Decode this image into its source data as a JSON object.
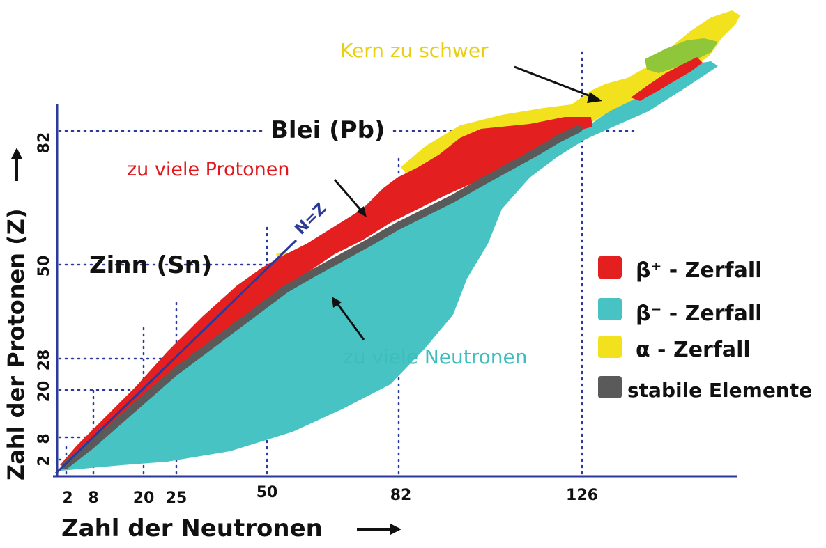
{
  "colors": {
    "beta_plus": "#e41f1f",
    "beta_minus": "#47c3c3",
    "alpha": "#f2e21e",
    "alpha_green": "#8fc63a",
    "stable": "#5a5a5a",
    "axis": "#2b3a9a",
    "nz_line": "#2b3a9a",
    "label_red": "#e0181e",
    "label_yellow": "#e8cf14",
    "label_cyan": "#3dbdbd",
    "dotted": "#2b3a9a"
  },
  "axes": {
    "x_label": "Zahl der Neutronen",
    "y_label": "Zahl der Protonen (Z)",
    "x_ticks": [
      "2",
      "8",
      "20",
      "25",
      "50",
      "82",
      "126"
    ],
    "y_ticks": [
      "2",
      "8",
      "20",
      "28",
      "50",
      "82"
    ]
  },
  "annotations": {
    "lead": "Blei (Pb)",
    "tin": "Zinn (Sn)",
    "too_many_protons": "zu viele Protonen",
    "too_many_neutrons": "zu viele Neutronen",
    "too_heavy": "Kern zu schwer",
    "nz_label": "N=Z"
  },
  "legend": [
    {
      "label": "β⁺ - Zerfall",
      "color": "#e41f1f"
    },
    {
      "label": "β⁻ - Zerfall",
      "color": "#47c3c3"
    },
    {
      "label": "α - Zerfall",
      "color": "#f2e21e"
    },
    {
      "label": "stabile Elemente",
      "color": "#5a5a5a"
    }
  ]
}
